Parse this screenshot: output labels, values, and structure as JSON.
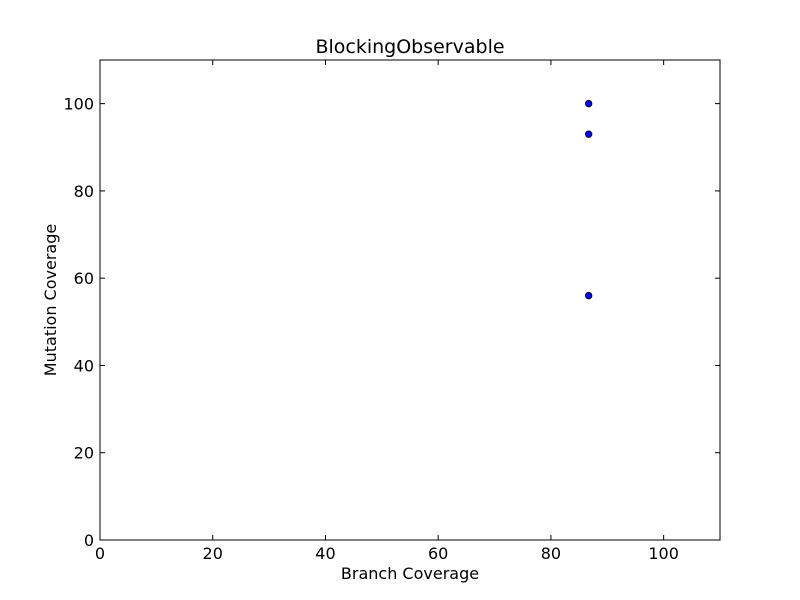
{
  "chart_data": {
    "type": "scatter",
    "title": "BlockingObservable",
    "xlabel": "Branch Coverage",
    "ylabel": "Mutation Coverage",
    "xlim": [
      0,
      110
    ],
    "ylim": [
      0,
      110
    ],
    "xticks": [
      0,
      20,
      40,
      60,
      80,
      100
    ],
    "yticks": [
      0,
      20,
      40,
      60,
      80,
      100
    ],
    "grid": false,
    "marker_color": "#0000ff",
    "points": [
      {
        "x": 86.7,
        "y": 100
      },
      {
        "x": 86.7,
        "y": 93
      },
      {
        "x": 86.7,
        "y": 56
      }
    ]
  }
}
